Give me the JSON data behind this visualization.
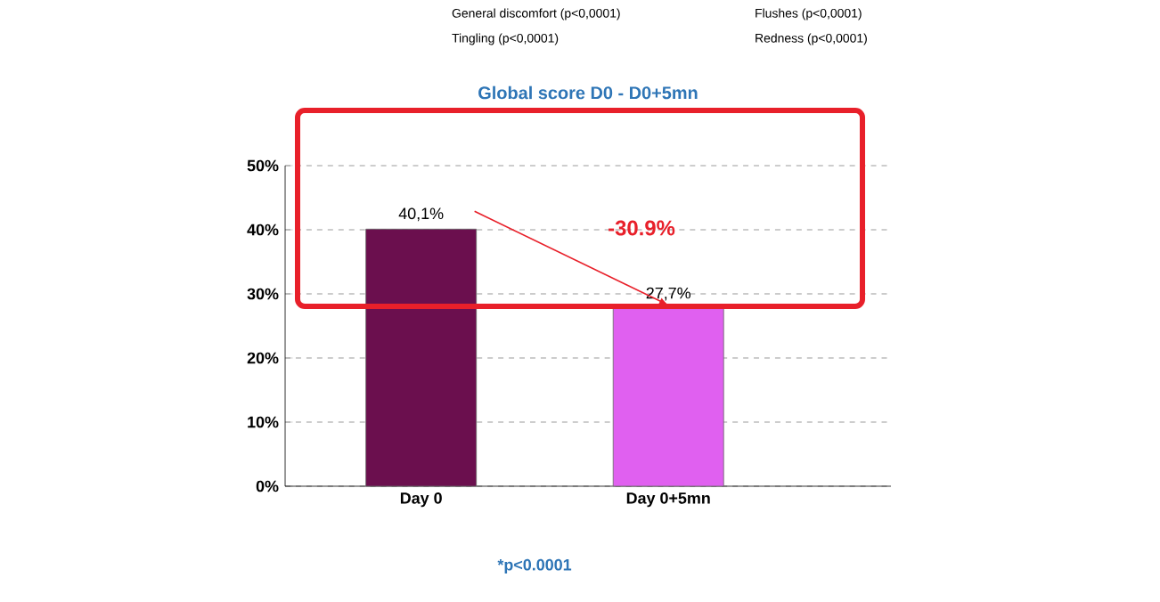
{
  "chart_data": {
    "type": "bar",
    "title": "Global score D0 - D0+5mn",
    "categories": [
      "Day 0",
      "Day 0+5mn"
    ],
    "values": [
      40.1,
      27.7
    ],
    "colors": [
      "#6b0f4e",
      "#e060f0"
    ],
    "value_labels": [
      "40,1%",
      "27,7%"
    ],
    "ylim": [
      0,
      50
    ],
    "yticks": [
      {
        "value": 0,
        "label": "0%"
      },
      {
        "value": 10,
        "label": "10%"
      },
      {
        "value": 20,
        "label": "20%"
      },
      {
        "value": 30,
        "label": "30%"
      },
      {
        "value": 40,
        "label": "40%"
      },
      {
        "value": 50,
        "label": "50%"
      }
    ],
    "grid": "y",
    "annotations": [
      "General discomfort (p<0,0001)",
      "Flushes (p<0,0001)",
      "Tingling (p<0,0001)",
      "Redness (p<0,0001)",
      "-30.9%",
      "*p<0.0001"
    ]
  }
}
